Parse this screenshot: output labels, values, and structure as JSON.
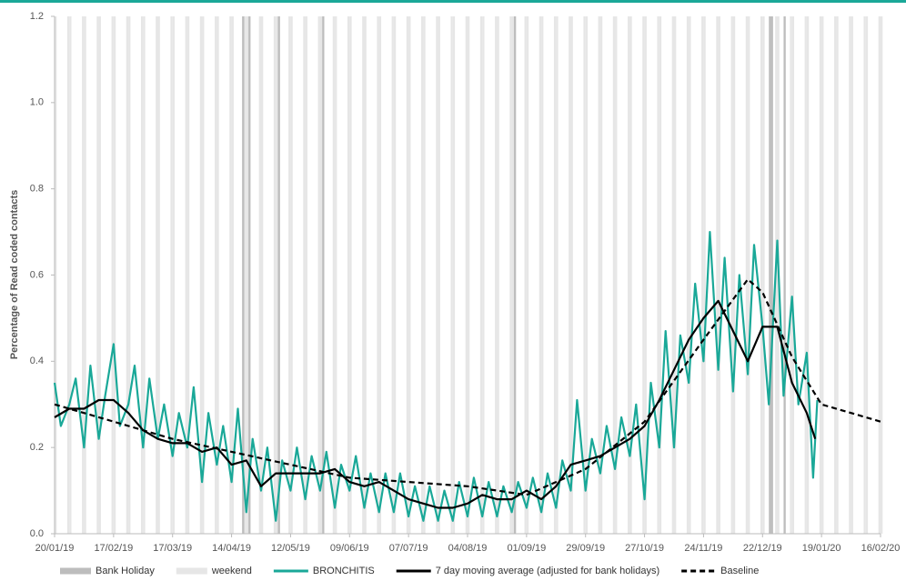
{
  "chart_data": {
    "type": "line",
    "y_label": "Percentage of Read coded contacts",
    "xlim": [
      "20/01/19",
      "16/02/20"
    ],
    "xticks": [
      "20/01/19",
      "17/02/19",
      "17/03/19",
      "14/04/19",
      "12/05/19",
      "09/06/19",
      "07/07/19",
      "04/08/19",
      "01/09/19",
      "29/09/19",
      "27/10/19",
      "24/11/19",
      "22/12/19",
      "19/01/20",
      "16/02/20"
    ],
    "ylim": [
      0,
      1.2
    ],
    "yticks": [
      {
        "value": 0,
        "label": "0.0"
      },
      0.2,
      0.4,
      0.6,
      0.8,
      {
        "value": 1,
        "label": "1.0"
      },
      1.2
    ],
    "bands": [
      {
        "name": "Bank Holiday",
        "color": "#bdbdbd",
        "dates": [
          "19/04/19",
          "22/04/19",
          "06/05/19",
          "27/05/19",
          "26/08/19",
          "25/12/19",
          "26/12/19",
          "01/01/20"
        ]
      },
      {
        "name": "weekend",
        "color": "#e6e6e6",
        "weekdays": [
          0,
          6
        ]
      }
    ],
    "series": [
      {
        "name": "BRONCHITIS",
        "color": "#1aa898",
        "width": 2.2,
        "dashed": false,
        "x": [
          "20/01/19",
          "23/01/19",
          "27/01/19",
          "30/01/19",
          "03/02/19",
          "06/02/19",
          "10/02/19",
          "13/02/19",
          "17/02/19",
          "20/02/19",
          "24/02/19",
          "27/02/19",
          "03/03/19",
          "06/03/19",
          "10/03/19",
          "13/03/19",
          "17/03/19",
          "20/03/19",
          "24/03/19",
          "27/03/19",
          "31/03/19",
          "03/04/19",
          "07/04/19",
          "10/04/19",
          "14/04/19",
          "17/04/19",
          "21/04/19",
          "24/04/19",
          "28/04/19",
          "01/05/19",
          "05/05/19",
          "08/05/19",
          "12/05/19",
          "15/05/19",
          "19/05/19",
          "22/05/19",
          "26/05/19",
          "29/05/19",
          "02/06/19",
          "05/06/19",
          "09/06/19",
          "12/06/19",
          "16/06/19",
          "19/06/19",
          "23/06/19",
          "26/06/19",
          "30/06/19",
          "03/07/19",
          "07/07/19",
          "10/07/19",
          "14/07/19",
          "17/07/19",
          "21/07/19",
          "24/07/19",
          "28/07/19",
          "31/07/19",
          "04/08/19",
          "07/08/19",
          "11/08/19",
          "14/08/19",
          "18/08/19",
          "21/08/19",
          "25/08/19",
          "28/08/19",
          "01/09/19",
          "04/09/19",
          "08/09/19",
          "11/09/19",
          "15/09/19",
          "18/09/19",
          "22/09/19",
          "25/09/19",
          "29/09/19",
          "02/10/19",
          "06/10/19",
          "09/10/19",
          "13/10/19",
          "16/10/19",
          "20/10/19",
          "23/10/19",
          "27/10/19",
          "30/10/19",
          "03/11/19",
          "06/11/19",
          "10/11/19",
          "13/11/19",
          "17/11/19",
          "20/11/19",
          "24/11/19",
          "27/11/19",
          "01/12/19",
          "04/12/19",
          "08/12/19",
          "11/12/19",
          "15/12/19",
          "18/12/19",
          "22/12/19",
          "25/12/19",
          "29/12/19",
          "01/01/20",
          "05/01/20",
          "08/01/20",
          "12/01/20",
          "15/01/20",
          "17/01/20"
        ],
        "values": [
          0.35,
          0.25,
          0.3,
          0.36,
          0.2,
          0.39,
          0.22,
          0.32,
          0.44,
          0.25,
          0.3,
          0.39,
          0.2,
          0.36,
          0.22,
          0.3,
          0.18,
          0.28,
          0.2,
          0.34,
          0.12,
          0.28,
          0.16,
          0.25,
          0.12,
          0.29,
          0.05,
          0.22,
          0.1,
          0.2,
          0.03,
          0.17,
          0.1,
          0.2,
          0.08,
          0.18,
          0.1,
          0.19,
          0.06,
          0.16,
          0.1,
          0.18,
          0.06,
          0.14,
          0.05,
          0.14,
          0.05,
          0.14,
          0.04,
          0.11,
          0.03,
          0.11,
          0.03,
          0.1,
          0.03,
          0.12,
          0.04,
          0.13,
          0.04,
          0.12,
          0.04,
          0.11,
          0.05,
          0.12,
          0.06,
          0.13,
          0.05,
          0.14,
          0.06,
          0.17,
          0.1,
          0.31,
          0.1,
          0.22,
          0.14,
          0.25,
          0.15,
          0.27,
          0.18,
          0.3,
          0.08,
          0.35,
          0.2,
          0.47,
          0.2,
          0.46,
          0.35,
          0.58,
          0.4,
          0.7,
          0.38,
          0.64,
          0.33,
          0.6,
          0.37,
          0.67,
          0.48,
          0.3,
          0.68,
          0.32,
          0.55,
          0.3,
          0.42,
          0.13,
          0.31
        ]
      },
      {
        "name": "7 day moving average (adjusted for bank holidays)",
        "color": "#000000",
        "width": 2.2,
        "dashed": false,
        "x": [
          "20/01/19",
          "27/01/19",
          "03/02/19",
          "10/02/19",
          "17/02/19",
          "24/02/19",
          "03/03/19",
          "10/03/19",
          "17/03/19",
          "24/03/19",
          "31/03/19",
          "07/04/19",
          "14/04/19",
          "21/04/19",
          "28/04/19",
          "05/05/19",
          "12/05/19",
          "19/05/19",
          "26/05/19",
          "02/06/19",
          "09/06/19",
          "16/06/19",
          "23/06/19",
          "30/06/19",
          "07/07/19",
          "14/07/19",
          "21/07/19",
          "28/07/19",
          "04/08/19",
          "11/08/19",
          "18/08/19",
          "25/08/19",
          "01/09/19",
          "08/09/19",
          "15/09/19",
          "22/09/19",
          "29/09/19",
          "06/10/19",
          "13/10/19",
          "20/10/19",
          "27/10/19",
          "03/11/19",
          "10/11/19",
          "17/11/19",
          "24/11/19",
          "01/12/19",
          "08/12/19",
          "15/12/19",
          "22/12/19",
          "29/12/19",
          "05/01/20",
          "12/01/20",
          "16/01/20"
        ],
        "values": [
          0.27,
          0.29,
          0.29,
          0.31,
          0.31,
          0.28,
          0.24,
          0.22,
          0.21,
          0.21,
          0.19,
          0.2,
          0.16,
          0.17,
          0.11,
          0.14,
          0.14,
          0.14,
          0.14,
          0.15,
          0.12,
          0.11,
          0.12,
          0.1,
          0.08,
          0.07,
          0.06,
          0.06,
          0.07,
          0.09,
          0.08,
          0.08,
          0.1,
          0.08,
          0.11,
          0.16,
          0.17,
          0.18,
          0.2,
          0.22,
          0.25,
          0.31,
          0.38,
          0.45,
          0.5,
          0.54,
          0.47,
          0.4,
          0.48,
          0.48,
          0.35,
          0.28,
          0.22
        ]
      },
      {
        "name": "Baseline",
        "color": "#000000",
        "width": 2.2,
        "dashed": true,
        "x": [
          "20/01/19",
          "17/02/19",
          "17/03/19",
          "14/04/19",
          "12/05/19",
          "09/06/19",
          "07/07/19",
          "04/08/19",
          "01/09/19",
          "29/09/19",
          "27/10/19",
          "24/11/19",
          "15/12/19",
          "22/12/19",
          "05/01/20",
          "19/01/20",
          "02/02/20",
          "16/02/20"
        ],
        "values": [
          0.3,
          0.26,
          0.22,
          0.19,
          0.16,
          0.13,
          0.12,
          0.11,
          0.09,
          0.15,
          0.26,
          0.45,
          0.59,
          0.56,
          0.41,
          0.3,
          0.28,
          0.26
        ]
      }
    ]
  }
}
